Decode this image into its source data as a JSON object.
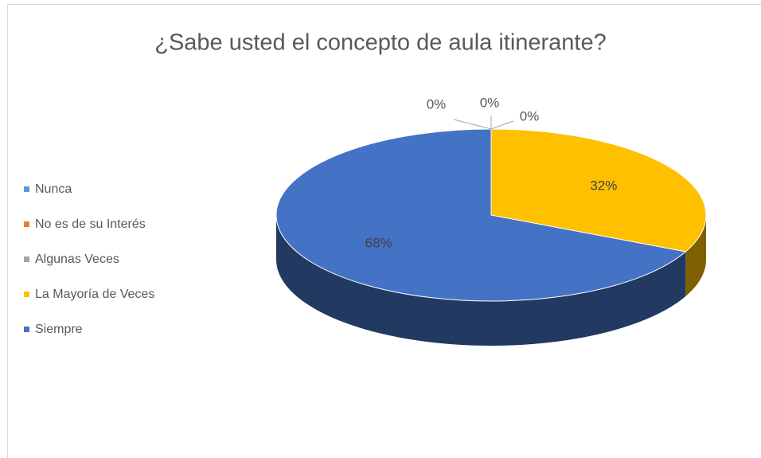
{
  "chart_data": {
    "type": "pie3d",
    "title": "¿Sabe usted el concepto de aula itinerante?",
    "categories": [
      "Nunca",
      "No es de su Interés",
      "Algunas Veces",
      "La Mayoría de Veces",
      "Siempre"
    ],
    "values": [
      0,
      0,
      0,
      32,
      68
    ],
    "value_labels": [
      "0%",
      "0%",
      "0%",
      "32%",
      "68%"
    ],
    "colors": [
      "#5b9bd5",
      "#ed7d31",
      "#a5a5a5",
      "#ffc000",
      "#4472c4"
    ],
    "legend": "left"
  }
}
